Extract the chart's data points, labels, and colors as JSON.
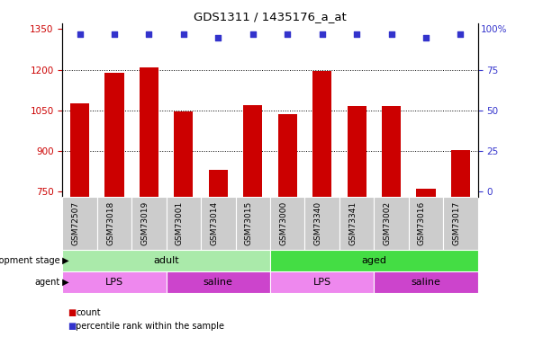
{
  "title": "GDS1311 / 1435176_a_at",
  "samples": [
    "GSM72507",
    "GSM73018",
    "GSM73019",
    "GSM73001",
    "GSM73014",
    "GSM73015",
    "GSM73000",
    "GSM73340",
    "GSM73341",
    "GSM73002",
    "GSM73016",
    "GSM73017"
  ],
  "counts": [
    1075,
    1190,
    1210,
    1045,
    830,
    1068,
    1035,
    1195,
    1065,
    1065,
    760,
    905
  ],
  "percentiles": [
    97,
    97,
    97,
    97,
    95,
    97,
    97,
    97,
    97,
    97,
    95,
    97
  ],
  "ylim_left": [
    730,
    1370
  ],
  "ylim_right": [
    -3.46,
    103.46
  ],
  "yticks_left": [
    750,
    900,
    1050,
    1200,
    1350
  ],
  "yticks_right": [
    0,
    25,
    50,
    75,
    100
  ],
  "bar_color": "#cc0000",
  "dot_color": "#3333cc",
  "bar_width": 0.55,
  "background_color": "#ffffff",
  "plot_bg_color": "#ffffff",
  "xticklabel_bg": "#cccccc",
  "development_stage_groups": [
    {
      "label": "adult",
      "start": 0,
      "end": 5,
      "color": "#aaeaaa"
    },
    {
      "label": "aged",
      "start": 6,
      "end": 11,
      "color": "#44dd44"
    }
  ],
  "agent_groups": [
    {
      "label": "LPS",
      "start": 0,
      "end": 2,
      "color": "#ee88ee"
    },
    {
      "label": "saline",
      "start": 3,
      "end": 5,
      "color": "#cc44cc"
    },
    {
      "label": "LPS",
      "start": 6,
      "end": 8,
      "color": "#ee88ee"
    },
    {
      "label": "saline",
      "start": 9,
      "end": 11,
      "color": "#cc44cc"
    }
  ]
}
